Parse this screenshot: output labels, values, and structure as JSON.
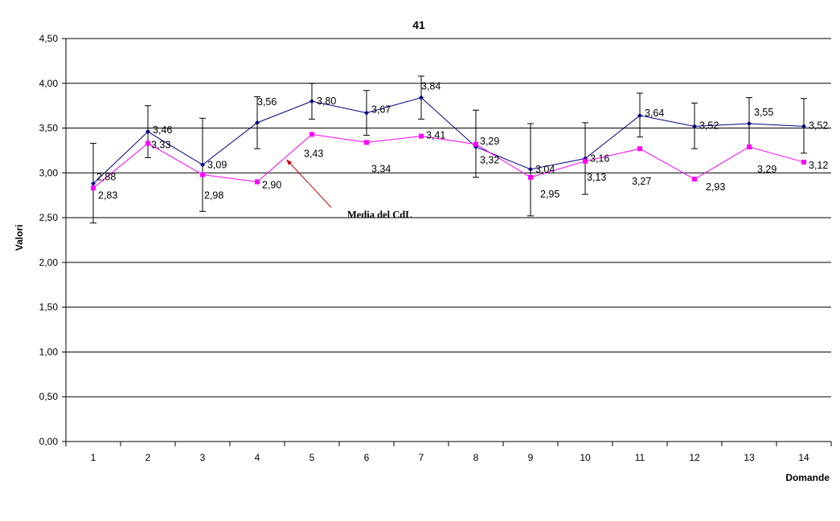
{
  "chart_data": {
    "type": "line",
    "title": "41",
    "xlabel": "Domande",
    "ylabel": "Valori",
    "categories": [
      "1",
      "2",
      "3",
      "4",
      "5",
      "6",
      "7",
      "8",
      "9",
      "10",
      "11",
      "12",
      "13",
      "14"
    ],
    "ylim": [
      0,
      4.5
    ],
    "yticks": [
      "0,00",
      "0,50",
      "1,00",
      "1,50",
      "2,00",
      "2,50",
      "3,00",
      "3,50",
      "4,00",
      "4,50"
    ],
    "grid": true,
    "legend": "none",
    "series": [
      {
        "color": "#000080",
        "marker": "diamond",
        "values": [
          2.88,
          3.46,
          3.09,
          3.56,
          3.8,
          3.67,
          3.84,
          3.29,
          3.04,
          3.16,
          3.64,
          3.52,
          3.55,
          3.52
        ],
        "labels": [
          "2,88",
          "3,46",
          "3,09",
          "3,56",
          "3,80",
          "3,67",
          "3,84",
          "3,29",
          "3,04",
          "3,16",
          "3,64",
          "3,52",
          "3,55",
          "3,52"
        ],
        "error_low": [
          2.44,
          3.17,
          2.57,
          3.27,
          3.6,
          3.42,
          3.6,
          2.95,
          2.52,
          2.76,
          3.4,
          3.27,
          3.27,
          3.22
        ],
        "error_high": [
          3.33,
          3.75,
          3.61,
          3.85,
          4.0,
          3.92,
          4.08,
          3.7,
          3.55,
          3.56,
          3.89,
          3.78,
          3.84,
          3.83
        ]
      },
      {
        "color": "#ff00ff",
        "marker": "square",
        "values": [
          2.83,
          3.33,
          2.98,
          2.9,
          3.43,
          3.34,
          3.41,
          3.32,
          2.95,
          3.13,
          3.27,
          2.93,
          3.29,
          3.12
        ],
        "labels": [
          "2,83",
          "3,33",
          "2,98",
          "2,90",
          "3,43",
          "3,34",
          "3,41",
          "3,32",
          "2,95",
          "3,13",
          "3,27",
          "2,93",
          "3,29",
          "3,12"
        ]
      }
    ],
    "annotations": [
      {
        "text": "Media del CdL",
        "target_x": 4.5,
        "target_y": 3.17
      }
    ]
  }
}
